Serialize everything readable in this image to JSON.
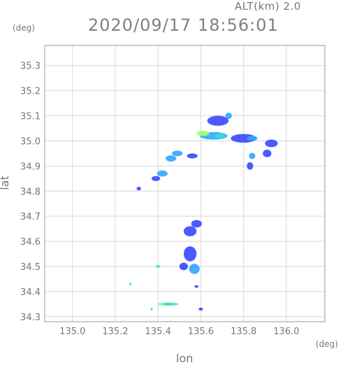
{
  "header": {
    "altitude": "ALT(km) 2.0",
    "datetime": "2020/09/17 18:56:01"
  },
  "chart_data": {
    "type": "heatmap",
    "title": "2020/09/17 18:56:01",
    "subtitle": "ALT(km) 2.0",
    "xlabel": "lon",
    "ylabel": "lat",
    "x_unit": "(deg)",
    "y_unit": "(deg)",
    "xlim": [
      134.87,
      136.18
    ],
    "ylim": [
      34.28,
      35.38
    ],
    "x_ticks": [
      {
        "v": 135.0,
        "label": "135.0"
      },
      {
        "v": 135.2,
        "label": "135.2"
      },
      {
        "v": 135.4,
        "label": "135.4"
      },
      {
        "v": 135.6,
        "label": "135.6"
      },
      {
        "v": 135.8,
        "label": "135.8"
      },
      {
        "v": 136.0,
        "label": "136.0"
      }
    ],
    "y_ticks": [
      {
        "v": 34.3,
        "label": "34.3"
      },
      {
        "v": 34.4,
        "label": "34.4"
      },
      {
        "v": 34.5,
        "label": "34.5"
      },
      {
        "v": 34.6,
        "label": "34.6"
      },
      {
        "v": 34.7,
        "label": "34.7"
      },
      {
        "v": 34.8,
        "label": "34.8"
      },
      {
        "v": 34.9,
        "label": "34.9"
      },
      {
        "v": 35.0,
        "label": "35.0"
      },
      {
        "v": 35.1,
        "label": "35.1"
      },
      {
        "v": 35.2,
        "label": "35.2"
      },
      {
        "v": 35.3,
        "label": "35.3"
      }
    ],
    "grid": true,
    "colors": {
      "weak": "#3b4cff",
      "moderate": "#34a8ff",
      "strong": "#31e0d0",
      "peak": "#9dff7a"
    },
    "echo_cells": [
      {
        "lon": 135.66,
        "lat": 35.02,
        "w": 0.13,
        "h": 0.03,
        "level": "moderate"
      },
      {
        "lon": 135.61,
        "lat": 35.03,
        "w": 0.06,
        "h": 0.022,
        "level": "peak"
      },
      {
        "lon": 135.69,
        "lat": 35.02,
        "w": 0.05,
        "h": 0.018,
        "level": "strong"
      },
      {
        "lon": 135.68,
        "lat": 35.08,
        "w": 0.1,
        "h": 0.04,
        "level": "weak"
      },
      {
        "lon": 135.73,
        "lat": 35.1,
        "w": 0.03,
        "h": 0.025,
        "level": "moderate"
      },
      {
        "lon": 135.8,
        "lat": 35.01,
        "w": 0.12,
        "h": 0.035,
        "level": "weak"
      },
      {
        "lon": 135.84,
        "lat": 35.01,
        "w": 0.05,
        "h": 0.02,
        "level": "moderate"
      },
      {
        "lon": 135.93,
        "lat": 34.99,
        "w": 0.06,
        "h": 0.03,
        "level": "weak"
      },
      {
        "lon": 135.91,
        "lat": 34.95,
        "w": 0.04,
        "h": 0.03,
        "level": "weak"
      },
      {
        "lon": 135.84,
        "lat": 34.94,
        "w": 0.03,
        "h": 0.025,
        "level": "moderate"
      },
      {
        "lon": 135.83,
        "lat": 34.9,
        "w": 0.03,
        "h": 0.03,
        "level": "weak"
      },
      {
        "lon": 135.56,
        "lat": 34.94,
        "w": 0.05,
        "h": 0.02,
        "level": "weak"
      },
      {
        "lon": 135.49,
        "lat": 34.95,
        "w": 0.05,
        "h": 0.022,
        "level": "moderate"
      },
      {
        "lon": 135.46,
        "lat": 34.93,
        "w": 0.05,
        "h": 0.025,
        "level": "moderate"
      },
      {
        "lon": 135.42,
        "lat": 34.87,
        "w": 0.05,
        "h": 0.025,
        "level": "moderate"
      },
      {
        "lon": 135.39,
        "lat": 34.85,
        "w": 0.04,
        "h": 0.02,
        "level": "weak"
      },
      {
        "lon": 135.31,
        "lat": 34.81,
        "w": 0.02,
        "h": 0.015,
        "level": "weak"
      },
      {
        "lon": 135.55,
        "lat": 34.64,
        "w": 0.06,
        "h": 0.04,
        "level": "weak"
      },
      {
        "lon": 135.58,
        "lat": 34.67,
        "w": 0.05,
        "h": 0.03,
        "level": "weak"
      },
      {
        "lon": 135.55,
        "lat": 34.55,
        "w": 0.06,
        "h": 0.06,
        "level": "weak"
      },
      {
        "lon": 135.57,
        "lat": 34.49,
        "w": 0.05,
        "h": 0.04,
        "level": "moderate"
      },
      {
        "lon": 135.52,
        "lat": 34.5,
        "w": 0.04,
        "h": 0.03,
        "level": "weak"
      },
      {
        "lon": 135.4,
        "lat": 34.5,
        "w": 0.02,
        "h": 0.01,
        "level": "strong"
      },
      {
        "lon": 135.27,
        "lat": 34.43,
        "w": 0.01,
        "h": 0.01,
        "level": "strong"
      },
      {
        "lon": 135.45,
        "lat": 34.35,
        "w": 0.09,
        "h": 0.012,
        "level": "strong"
      },
      {
        "lon": 135.41,
        "lat": 34.35,
        "w": 0.03,
        "h": 0.01,
        "level": "peak"
      },
      {
        "lon": 135.37,
        "lat": 34.33,
        "w": 0.01,
        "h": 0.01,
        "level": "strong"
      },
      {
        "lon": 135.6,
        "lat": 34.33,
        "w": 0.02,
        "h": 0.012,
        "level": "weak"
      },
      {
        "lon": 135.58,
        "lat": 34.42,
        "w": 0.02,
        "h": 0.01,
        "level": "weak"
      }
    ]
  }
}
